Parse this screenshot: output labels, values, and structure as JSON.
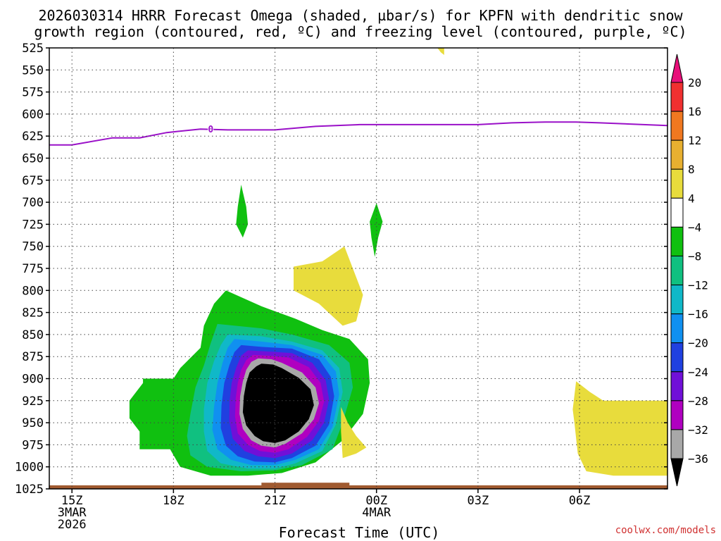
{
  "chart_data": {
    "type": "heatmap",
    "title_line1": "2026030314 HRRR Forecast Omega (shaded, µbar/s) for KPFN with dendritic snow",
    "title_line2": "growth region (contoured, red, ºC) and freezing level (contoured, purple, ºC)",
    "xlabel": "Forecast Time (UTC)",
    "credit": "coolwx.com/models",
    "x_range_hours": [
      14.33,
      32.6
    ],
    "y_range_hpa": [
      525,
      1025
    ],
    "y_ticks": [
      525,
      550,
      575,
      600,
      625,
      650,
      675,
      700,
      725,
      750,
      775,
      800,
      825,
      850,
      875,
      900,
      925,
      950,
      975,
      1000,
      1025
    ],
    "x_ticks": [
      {
        "hour": 15,
        "lines": [
          "15Z",
          "3MAR",
          "2026"
        ]
      },
      {
        "hour": 18,
        "lines": [
          "18Z"
        ]
      },
      {
        "hour": 21,
        "lines": [
          "21Z"
        ]
      },
      {
        "hour": 24,
        "lines": [
          "00Z",
          "4MAR"
        ]
      },
      {
        "hour": 27,
        "lines": [
          "03Z"
        ]
      },
      {
        "hour": 30,
        "lines": [
          "06Z"
        ]
      }
    ],
    "grid": true,
    "colorbar": {
      "labels": [
        "20",
        "16",
        "12",
        "8",
        "4",
        "−4",
        "−8",
        "−12",
        "−16",
        "−20",
        "−24",
        "−28",
        "−32",
        "−36"
      ],
      "colors": [
        "#e8107a",
        "#f03030",
        "#f07820",
        "#e8b030",
        "#e8dc3c",
        "#ffffff",
        "#10c010",
        "#10c080",
        "#10b8c8",
        "#1090f0",
        "#2040e0",
        "#7010d8",
        "#b000c0",
        "#a8a8a8",
        "#000000"
      ]
    },
    "freezing_level": {
      "color": "#9a10c8",
      "label": "0",
      "points": [
        [
          14.33,
          635
        ],
        [
          15,
          635
        ],
        [
          16.2,
          627
        ],
        [
          17,
          627
        ],
        [
          17.8,
          621
        ],
        [
          18.8,
          617
        ],
        [
          19.6,
          618
        ],
        [
          21,
          618
        ],
        [
          22.2,
          614
        ],
        [
          23.5,
          612
        ],
        [
          27,
          612
        ],
        [
          28,
          610
        ],
        [
          29,
          609
        ],
        [
          29.9,
          609
        ],
        [
          30.6,
          610
        ],
        [
          32.6,
          613
        ]
      ],
      "label_at": [
        19.1,
        617
      ]
    },
    "regions": [
      {
        "level": "-8",
        "color": "#10c010",
        "points": [
          [
            19.55,
            800
          ],
          [
            20.6,
            818
          ],
          [
            21.6,
            832
          ],
          [
            22.4,
            845
          ],
          [
            23.2,
            855
          ],
          [
            23.75,
            878
          ],
          [
            23.8,
            905
          ],
          [
            23.6,
            940
          ],
          [
            23.0,
            970
          ],
          [
            22.2,
            995
          ],
          [
            21.2,
            1007
          ],
          [
            20.2,
            1010
          ],
          [
            19.1,
            1010
          ],
          [
            18.2,
            1000
          ],
          [
            17.9,
            980
          ],
          [
            17.0,
            980
          ],
          [
            17.0,
            960
          ],
          [
            16.7,
            945
          ],
          [
            16.7,
            925
          ],
          [
            17.1,
            905
          ],
          [
            17.1,
            900
          ],
          [
            18.0,
            900
          ],
          [
            18.2,
            888
          ],
          [
            18.8,
            865
          ],
          [
            18.9,
            840
          ],
          [
            19.2,
            815
          ]
        ]
      },
      {
        "level": "-12",
        "color": "#10c080",
        "points": [
          [
            19.3,
            838
          ],
          [
            20.6,
            843
          ],
          [
            21.5,
            850
          ],
          [
            22.6,
            862
          ],
          [
            23.2,
            882
          ],
          [
            23.3,
            910
          ],
          [
            23.0,
            950
          ],
          [
            22.7,
            980
          ],
          [
            21.8,
            998
          ],
          [
            21,
            1004
          ],
          [
            20.0,
            1005
          ],
          [
            19.0,
            1000
          ],
          [
            18.5,
            987
          ],
          [
            18.4,
            965
          ],
          [
            18.5,
            940
          ],
          [
            18.65,
            910
          ],
          [
            18.9,
            885
          ],
          [
            19.1,
            860
          ]
        ]
      },
      {
        "level": "-16",
        "color": "#10b8c8",
        "points": [
          [
            19.6,
            850
          ],
          [
            20.6,
            852
          ],
          [
            21.5,
            858
          ],
          [
            22.4,
            868
          ],
          [
            22.9,
            888
          ],
          [
            23.0,
            915
          ],
          [
            22.8,
            952
          ],
          [
            22.4,
            982
          ],
          [
            21.6,
            996
          ],
          [
            21,
            1002
          ],
          [
            20.2,
            1002
          ],
          [
            19.4,
            996
          ],
          [
            19.0,
            982
          ],
          [
            18.9,
            960
          ],
          [
            18.9,
            935
          ],
          [
            19.0,
            905
          ],
          [
            19.2,
            880
          ],
          [
            19.4,
            862
          ]
        ]
      },
      {
        "level": "-20",
        "color": "#1090f0",
        "points": [
          [
            19.8,
            855
          ],
          [
            20.6,
            858
          ],
          [
            21.5,
            862
          ],
          [
            22.4,
            873
          ],
          [
            22.8,
            892
          ],
          [
            22.9,
            918
          ],
          [
            22.7,
            955
          ],
          [
            22.3,
            980
          ],
          [
            21.6,
            992
          ],
          [
            21,
            998
          ],
          [
            20.3,
            998
          ],
          [
            19.7,
            992
          ],
          [
            19.3,
            980
          ],
          [
            19.15,
            958
          ],
          [
            19.2,
            932
          ],
          [
            19.3,
            905
          ],
          [
            19.45,
            882
          ],
          [
            19.6,
            865
          ]
        ]
      },
      {
        "level": "-24",
        "color": "#2040e0",
        "points": [
          [
            20.0,
            862
          ],
          [
            20.6,
            864
          ],
          [
            21.5,
            866
          ],
          [
            22.3,
            878
          ],
          [
            22.65,
            898
          ],
          [
            22.75,
            920
          ],
          [
            22.6,
            952
          ],
          [
            22.2,
            976
          ],
          [
            21.5,
            990
          ],
          [
            21,
            995
          ],
          [
            20.4,
            994
          ],
          [
            19.9,
            988
          ],
          [
            19.55,
            976
          ],
          [
            19.4,
            956
          ],
          [
            19.42,
            930
          ],
          [
            19.5,
            905
          ],
          [
            19.65,
            885
          ],
          [
            19.8,
            870
          ]
        ]
      },
      {
        "level": "-28",
        "color": "#7010d8",
        "points": [
          [
            20.2,
            868
          ],
          [
            20.7,
            869
          ],
          [
            21.5,
            871
          ],
          [
            22.1,
            882
          ],
          [
            22.5,
            902
          ],
          [
            22.6,
            924
          ],
          [
            22.45,
            950
          ],
          [
            22.1,
            970
          ],
          [
            21.5,
            985
          ],
          [
            21,
            990
          ],
          [
            20.5,
            988
          ],
          [
            20.1,
            982
          ],
          [
            19.75,
            968
          ],
          [
            19.65,
            948
          ],
          [
            19.66,
            925
          ],
          [
            19.72,
            905
          ],
          [
            19.85,
            888
          ],
          [
            20.0,
            874
          ]
        ]
      },
      {
        "level": "-32",
        "color": "#b000c0",
        "points": [
          [
            20.35,
            873
          ],
          [
            20.8,
            874
          ],
          [
            21.4,
            876
          ],
          [
            22.0,
            887
          ],
          [
            22.35,
            905
          ],
          [
            22.45,
            926
          ],
          [
            22.3,
            948
          ],
          [
            21.95,
            966
          ],
          [
            21.4,
            980
          ],
          [
            21,
            984
          ],
          [
            20.55,
            982
          ],
          [
            20.2,
            975
          ],
          [
            19.9,
            962
          ],
          [
            19.82,
            943
          ],
          [
            19.84,
            922
          ],
          [
            19.9,
            905
          ],
          [
            20.0,
            890
          ],
          [
            20.15,
            879
          ]
        ]
      },
      {
        "level": "-36",
        "color": "#a8a8a8",
        "points": [
          [
            20.5,
            877
          ],
          [
            20.9,
            878
          ],
          [
            21.2,
            882
          ],
          [
            21.8,
            893
          ],
          [
            22.2,
            910
          ],
          [
            22.3,
            928
          ],
          [
            22.15,
            946
          ],
          [
            21.8,
            962
          ],
          [
            21.3,
            974
          ],
          [
            21,
            978
          ],
          [
            20.6,
            976
          ],
          [
            20.3,
            970
          ],
          [
            20.05,
            957
          ],
          [
            19.95,
            940
          ],
          [
            19.97,
            920
          ],
          [
            20.05,
            903
          ],
          [
            20.15,
            890
          ],
          [
            20.3,
            881
          ]
        ]
      },
      {
        "level": "-40",
        "color": "#000000",
        "points": [
          [
            20.6,
            883
          ],
          [
            20.95,
            884
          ],
          [
            21.2,
            888
          ],
          [
            21.7,
            899
          ],
          [
            22.05,
            912
          ],
          [
            22.15,
            930
          ],
          [
            22.0,
            946
          ],
          [
            21.7,
            960
          ],
          [
            21.3,
            970
          ],
          [
            21,
            973
          ],
          [
            20.65,
            971
          ],
          [
            20.4,
            965
          ],
          [
            20.15,
            953
          ],
          [
            20.05,
            938
          ],
          [
            20.08,
            920
          ],
          [
            20.15,
            905
          ],
          [
            20.25,
            893
          ],
          [
            20.45,
            886
          ]
        ]
      },
      {
        "level": "4",
        "color": "#e8dc3c",
        "points": [
          [
            21.55,
            773
          ],
          [
            22.4,
            767
          ],
          [
            23.05,
            750
          ],
          [
            23.3,
            775
          ],
          [
            23.6,
            805
          ],
          [
            23.4,
            835
          ],
          [
            23.0,
            840
          ],
          [
            22.3,
            815
          ],
          [
            21.55,
            800
          ]
        ]
      },
      {
        "level": "4",
        "color": "#e8dc3c",
        "points": [
          [
            22.95,
            932
          ],
          [
            23.15,
            950
          ],
          [
            23.4,
            965
          ],
          [
            23.7,
            978
          ],
          [
            23.4,
            985
          ],
          [
            23.0,
            990
          ],
          [
            22.95,
            960
          ]
        ]
      },
      {
        "level": "4",
        "color": "#e8dc3c",
        "points": [
          [
            29.9,
            903
          ],
          [
            30.3,
            915
          ],
          [
            30.7,
            925
          ],
          [
            32.6,
            925
          ],
          [
            32.6,
            1010
          ],
          [
            31.0,
            1010
          ],
          [
            30.2,
            1005
          ],
          [
            29.95,
            985
          ],
          [
            29.85,
            950
          ],
          [
            29.8,
            935
          ]
        ]
      },
      {
        "level": "4",
        "color": "#e8dc3c",
        "points": [
          [
            25.8,
            525
          ],
          [
            26.0,
            525
          ],
          [
            26.0,
            533
          ],
          [
            25.9,
            530
          ]
        ]
      },
      {
        "level": "-8",
        "color": "#10c010",
        "points": [
          [
            20.0,
            680
          ],
          [
            20.15,
            705
          ],
          [
            20.2,
            725
          ],
          [
            20.05,
            740
          ],
          [
            19.85,
            725
          ],
          [
            19.9,
            705
          ]
        ]
      },
      {
        "level": "-8",
        "color": "#10c010",
        "points": [
          [
            24.0,
            701
          ],
          [
            24.18,
            722
          ],
          [
            24.05,
            740
          ],
          [
            23.95,
            762
          ],
          [
            23.85,
            740
          ],
          [
            23.8,
            722
          ]
        ]
      }
    ],
    "ground": {
      "color": "#a05a30",
      "from_hpa": 1021,
      "to_hpa": 1025
    }
  }
}
